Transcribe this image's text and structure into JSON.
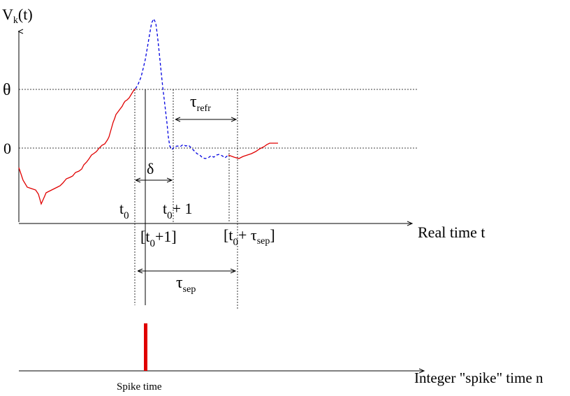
{
  "labels": {
    "y_axis_V": "V",
    "y_axis_sub": "k",
    "y_axis_arg": "(t)",
    "theta": "θ",
    "zero": "0",
    "tau_refr": "τ",
    "tau_refr_sub": "refr",
    "delta": "δ",
    "t0": "t",
    "t0_sub": "0",
    "t0p1": "t",
    "t0p1_sub": "0",
    "t0p1_rest": "+ 1",
    "bracket_t0p1_open": "[t",
    "bracket_t0p1_sub": "0",
    "bracket_t0p1_close": "+1]",
    "bracket_tsep_open": "[t",
    "bracket_tsep_sub": "0",
    "bracket_tsep_mid": "+ τ",
    "bracket_tsep_sub2": "sep",
    "bracket_tsep_close": "]",
    "real_time": "Real time t",
    "tau_sep": "τ",
    "tau_sep_sub": "sep",
    "integer_time": "Integer \"spike\" time n",
    "spike_time": "Spike time"
  },
  "colors": {
    "membrane_below": "#e00000",
    "membrane_spike": "#0000e0",
    "spike_marker": "#e00000",
    "axis": "#000000",
    "guide": "#000000"
  }
}
